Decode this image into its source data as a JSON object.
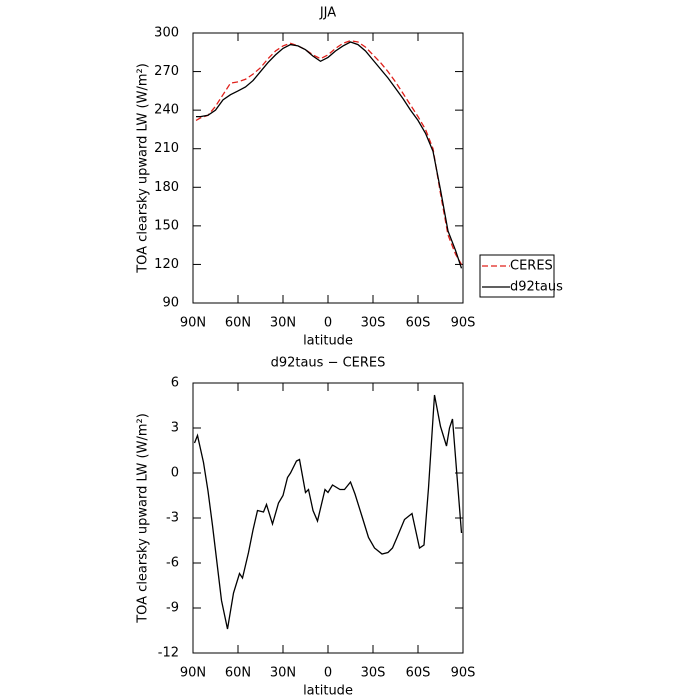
{
  "chart_data": [
    {
      "type": "line",
      "title": "JJA",
      "xlabel": "latitude",
      "ylabel": "TOA clearsky upward LW (W/m²)",
      "x": [
        88,
        85,
        80,
        75,
        70,
        65,
        60,
        55,
        50,
        45,
        40,
        35,
        30,
        25,
        20,
        15,
        10,
        5,
        0,
        -5,
        -10,
        -15,
        -20,
        -25,
        -30,
        -35,
        -40,
        -45,
        -50,
        -55,
        -60,
        -65,
        -70,
        -75,
        -80,
        -85,
        -89
      ],
      "series": [
        {
          "name": "CERES",
          "color": "#e0201b",
          "dash": true,
          "values": [
            232,
            234,
            236,
            243,
            252,
            261,
            262,
            264,
            268,
            273,
            280,
            286,
            290,
            292,
            290,
            287,
            283,
            280,
            283,
            288,
            292,
            294,
            293,
            289,
            283,
            277,
            270,
            262,
            253,
            244,
            235,
            225,
            210,
            175,
            143,
            128,
            120
          ]
        },
        {
          "name": "d92taus",
          "color": "#000000",
          "dash": false,
          "values": [
            235,
            235,
            236,
            240,
            248,
            252,
            255,
            258,
            263,
            270,
            277,
            283,
            288,
            291,
            290,
            287,
            282,
            278,
            281,
            286,
            290,
            293,
            291,
            286,
            279,
            272,
            265,
            257,
            249,
            240,
            232,
            222,
            208,
            178,
            146,
            131,
            117
          ]
        }
      ],
      "xlim": [
        90,
        -90
      ],
      "xticks": [
        {
          "value": 90,
          "label": "90N"
        },
        {
          "value": 60,
          "label": "60N"
        },
        {
          "value": 30,
          "label": "30N"
        },
        0,
        {
          "value": -30,
          "label": "30S"
        },
        {
          "value": -60,
          "label": "60S"
        },
        {
          "value": -90,
          "label": "90S"
        }
      ],
      "ylim": [
        90,
        300
      ],
      "yticks": [
        90,
        120,
        150,
        180,
        210,
        240,
        270,
        300
      ],
      "legend": "right"
    },
    {
      "type": "line",
      "title": "d92taus − CERES",
      "xlabel": "latitude",
      "ylabel": "TOA clearsky upward LW (W/m²)",
      "x": [
        89,
        87,
        83,
        80,
        77,
        71,
        67,
        63,
        59,
        57,
        53,
        50,
        47,
        43,
        41,
        37,
        33,
        30,
        27,
        25,
        21,
        19,
        15,
        13,
        10,
        7,
        2,
        0,
        -3,
        -8,
        -11,
        -15,
        -18,
        -23,
        -27,
        -31,
        -36,
        -40,
        -43,
        -46,
        -51,
        -56,
        -61,
        -64,
        -67,
        -71,
        -75,
        -79,
        -81,
        -83,
        -89
      ],
      "series": [
        {
          "name": "d92taus − CERES",
          "color": "#000000",
          "dash": false,
          "values": [
            2,
            2.5,
            0.7,
            -1.2,
            -3.5,
            -8.5,
            -10.4,
            -8,
            -6.7,
            -7,
            -5.3,
            -3.8,
            -2.5,
            -2.6,
            -2.1,
            -3.4,
            -2,
            -1.5,
            -0.3,
            0,
            0.8,
            0.9,
            -1.3,
            -1.1,
            -2.5,
            -3.2,
            -1.1,
            -1.3,
            -0.8,
            -1.1,
            -1.1,
            -0.6,
            -1.4,
            -3,
            -4.3,
            -5,
            -5.4,
            -5.3,
            -5,
            -4.3,
            -3.1,
            -2.7,
            -5,
            -4.8,
            -1,
            5.2,
            3.1,
            1.8,
            3,
            3.6,
            -4
          ]
        }
      ],
      "xlim": [
        90,
        -90
      ],
      "xticks": [
        {
          "value": 90,
          "label": "90N"
        },
        {
          "value": 60,
          "label": "60N"
        },
        {
          "value": 30,
          "label": "30N"
        },
        0,
        {
          "value": -30,
          "label": "30S"
        },
        {
          "value": -60,
          "label": "60S"
        },
        {
          "value": -90,
          "label": "90S"
        }
      ],
      "ylim": [
        -12,
        6
      ],
      "yticks": [
        -12,
        -9,
        -6,
        -3,
        0,
        3,
        6
      ]
    }
  ]
}
